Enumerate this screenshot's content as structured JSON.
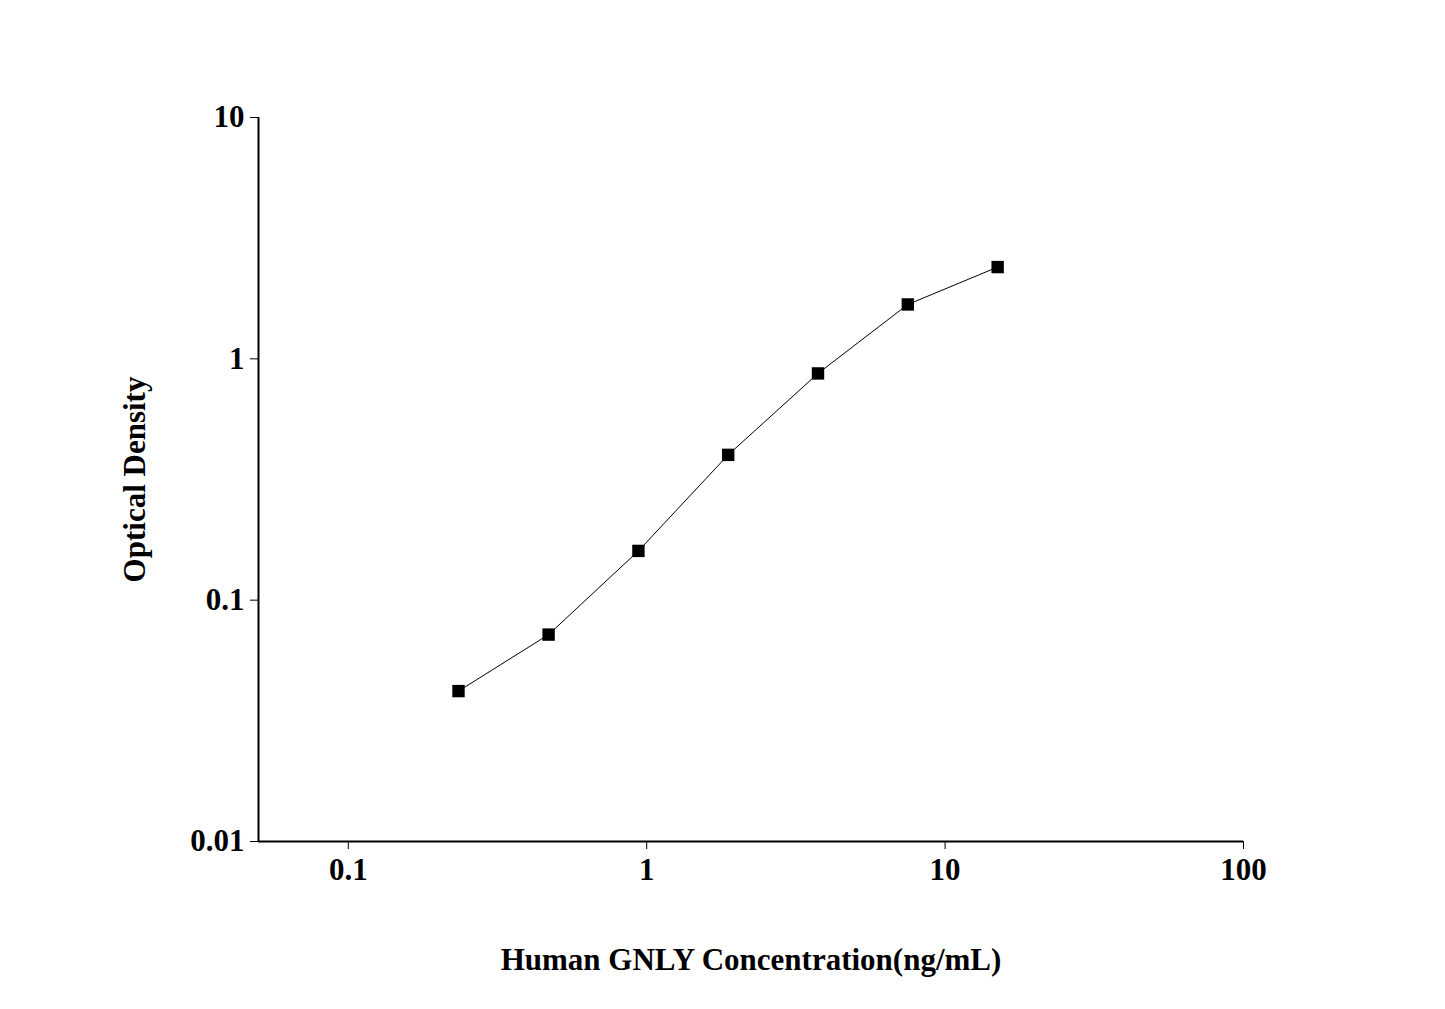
{
  "chart_data": {
    "type": "line",
    "marker": "square",
    "color": "#000000",
    "log": true,
    "x_label": "Human GNLY Concentration(ng/mL)",
    "y_label": "Optical Density",
    "x": [
      0.234,
      0.469,
      0.938,
      1.875,
      3.75,
      7.5,
      15
    ],
    "values": [
      0.042,
      0.072,
      0.16,
      0.4,
      0.87,
      1.68,
      2.4
    ],
    "xlim": [
      0.05,
      100
    ],
    "xticks": [
      0.1,
      1,
      10,
      100
    ],
    "ylim": [
      0.01,
      10
    ],
    "yticks": [
      0.01,
      0.1,
      1,
      10
    ]
  }
}
